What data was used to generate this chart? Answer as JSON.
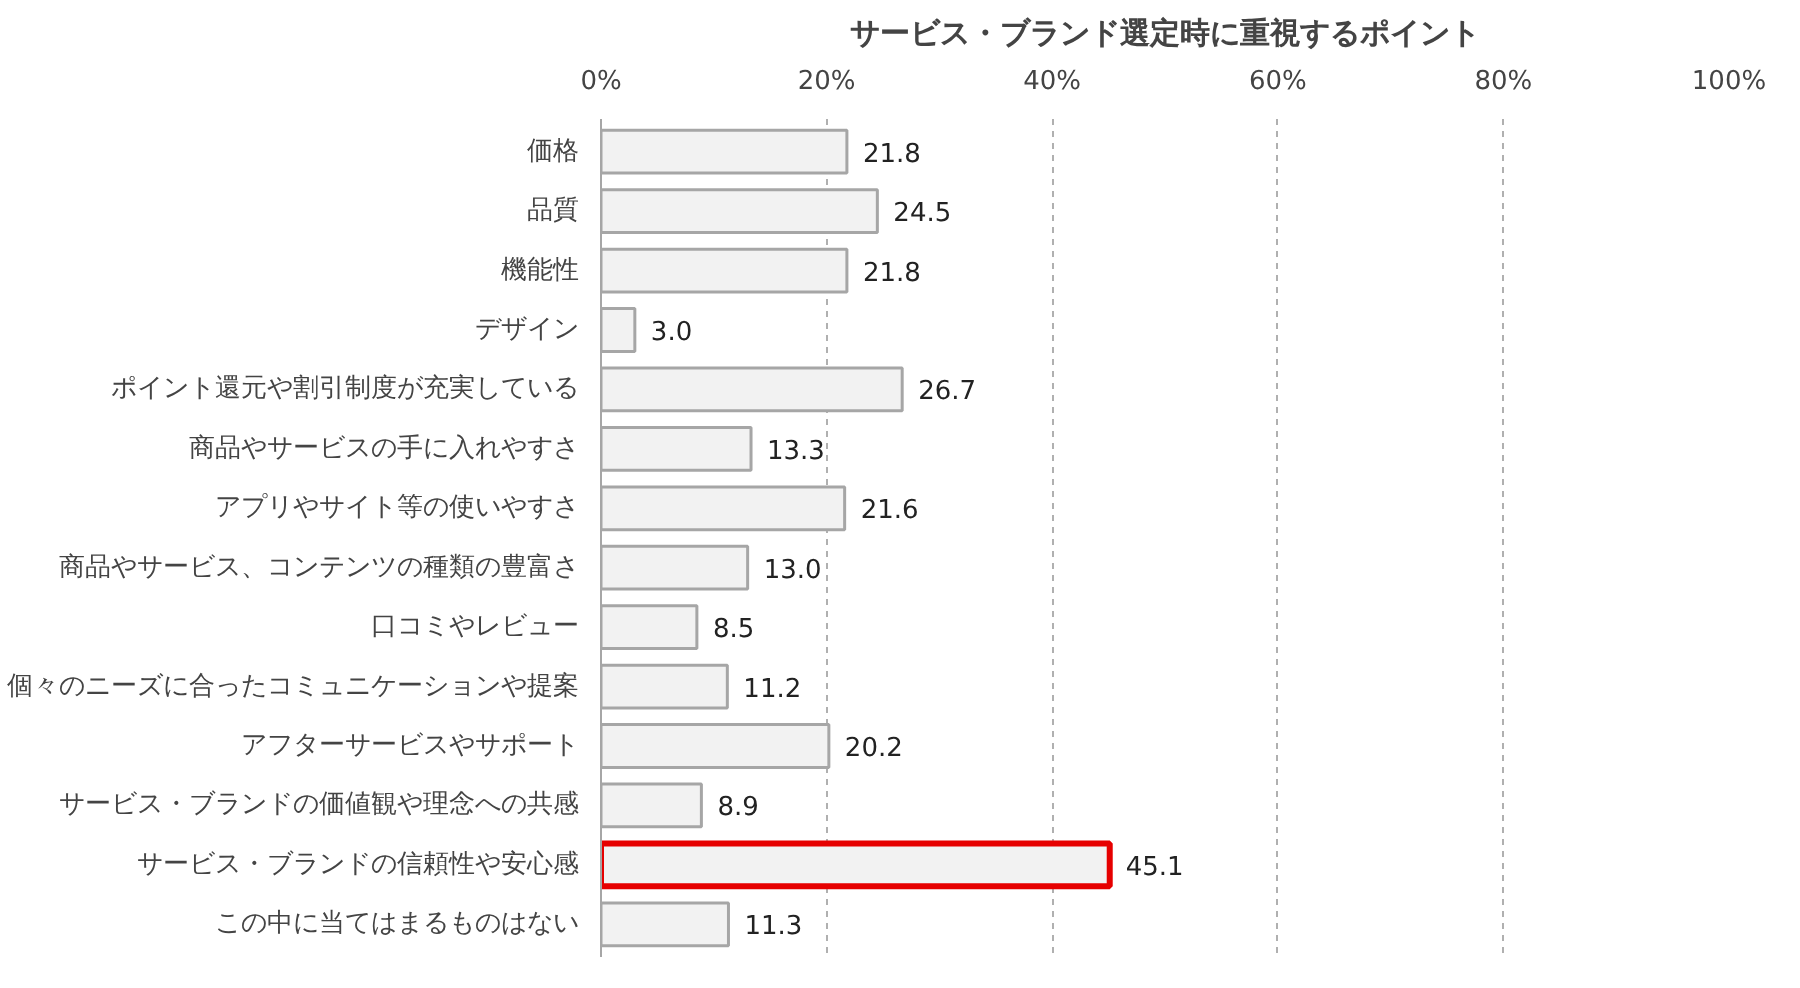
{
  "chart_data": {
    "type": "bar",
    "orientation": "horizontal",
    "title": "サービス・ブランド選定時に重視するポイント",
    "categories": [
      "価格",
      "品質",
      "機能性",
      "デザイン",
      "ポイント還元や割引制度が充実している",
      "商品やサービスの手に入れやすさ",
      "アプリやサイト等の使いやすさ",
      "商品やサービス、コンテンツの種類の豊富さ",
      "口コミやレビュー",
      "個々のニーズに合ったコミュニケーションや提案",
      "アフターサービスやサポート",
      "サービス・ブランドの価値観や理念への共感",
      "サービス・ブランドの信頼性や安心感",
      "この中に当てはまるものはない"
    ],
    "values": [
      21.8,
      24.5,
      21.8,
      3.0,
      26.7,
      13.3,
      21.6,
      13.0,
      8.5,
      11.2,
      20.2,
      8.9,
      45.1,
      11.3
    ],
    "value_labels": [
      "21.8",
      "24.5",
      "21.8",
      "3.0",
      "26.7",
      "13.3",
      "21.6",
      "13.0",
      "8.5",
      "11.2",
      "20.2",
      "8.9",
      "45.1",
      "11.3"
    ],
    "colors": [
      "#a6a6a6",
      "#a6a6a6",
      "#a6a6a6",
      "#a6a6a6",
      "#a6a6a6",
      "#a6a6a6",
      "#a6a6a6",
      "#a6a6a6",
      "#a6a6a6",
      "#a6a6a6",
      "#a6a6a6",
      "#a6a6a6",
      "#e60000",
      "#a6a6a6"
    ],
    "xlim": [
      0,
      100
    ],
    "xticks": [
      {
        "value": 0,
        "label": "0%"
      },
      {
        "value": 20,
        "label": "20%"
      },
      {
        "value": 40,
        "label": "40%"
      },
      {
        "value": 60,
        "label": "60%"
      },
      {
        "value": 80,
        "label": "80%"
      },
      {
        "value": 100,
        "label": "100%"
      }
    ],
    "grid": "x"
  }
}
